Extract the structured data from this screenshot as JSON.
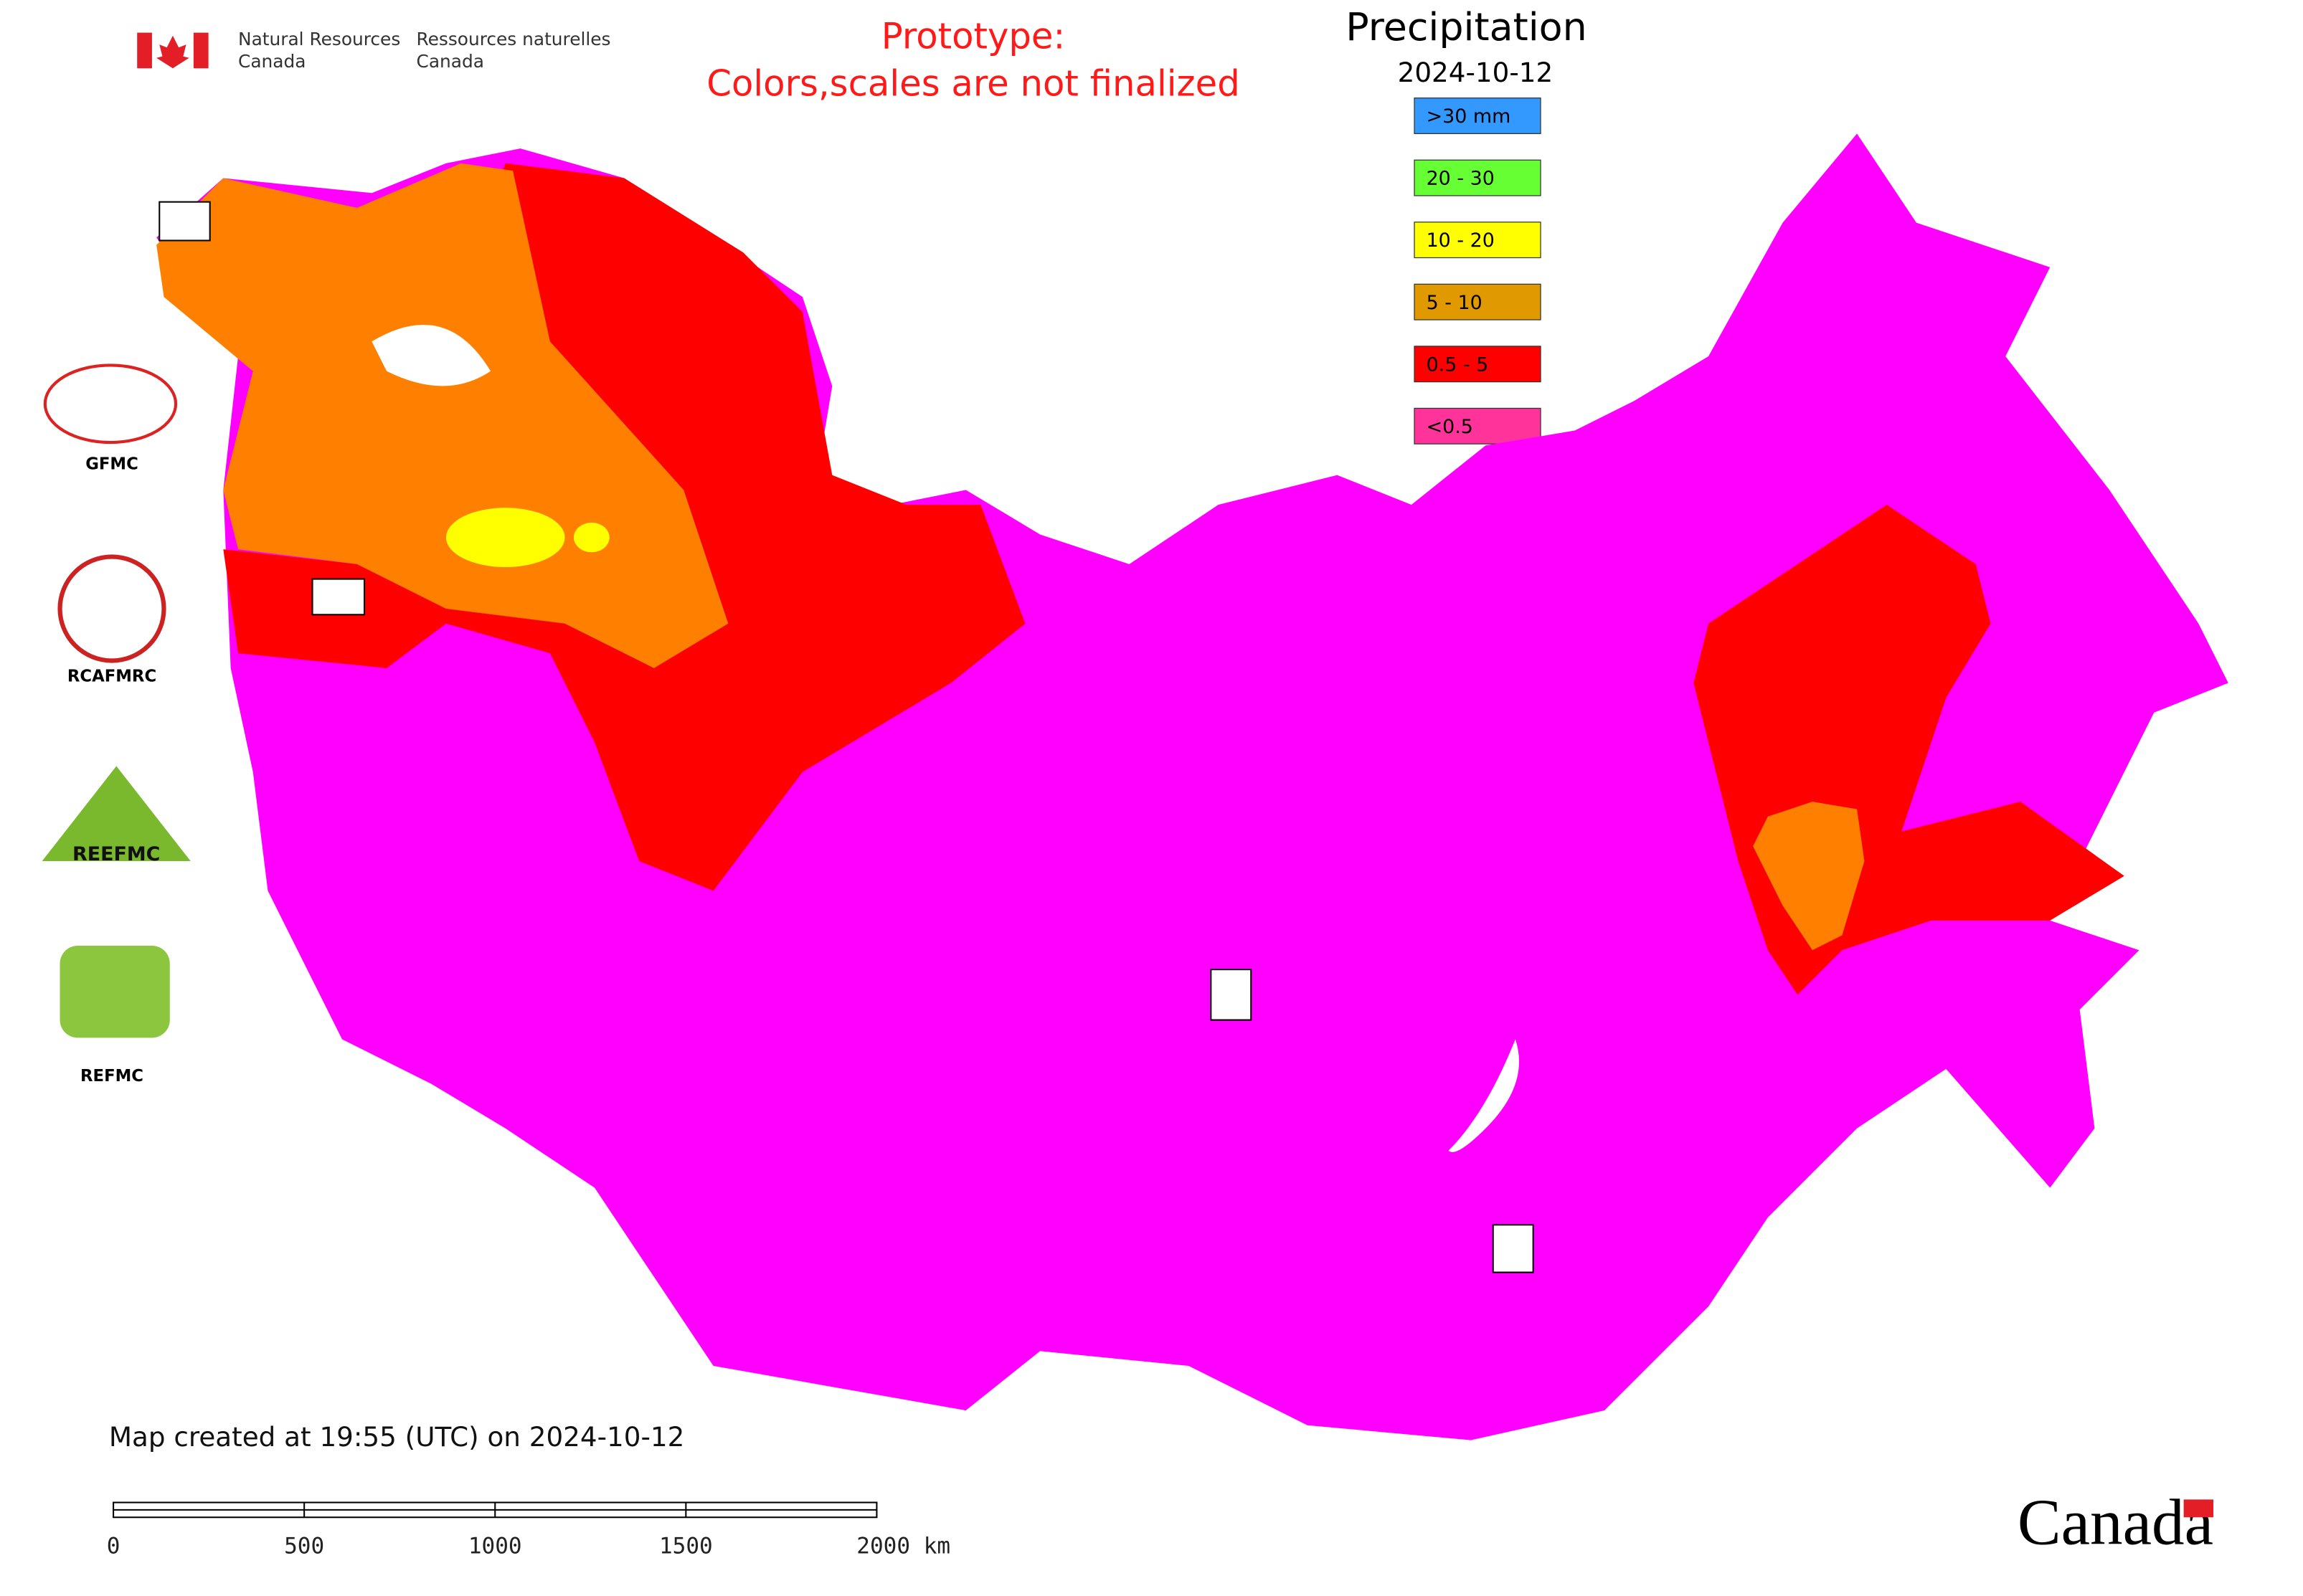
{
  "agency": {
    "en_line1": "Natural Resources",
    "en_line2": "Canada",
    "fr_line1": "Ressources naturelles",
    "fr_line2": "Canada"
  },
  "notice": {
    "line1": "Prototype:",
    "line2": "Colors,scales are not finalized"
  },
  "legend": {
    "title": "Precipitation",
    "date": "2024-10-12",
    "items": [
      {
        "label": ">30 mm",
        "color": "#3399ff"
      },
      {
        "label": "20 - 30",
        "color": "#66ff33"
      },
      {
        "label": "10 - 20",
        "color": "#ffff00"
      },
      {
        "label": "5 - 10",
        "color": "#e09a00"
      },
      {
        "label": "0.5 - 5",
        "color": "#ff0000"
      },
      {
        "label": "<0.5",
        "color": "#ff3399"
      }
    ]
  },
  "map_colors": {
    "low": "#ff00ff",
    "mid": "#ff0000",
    "high": "#ff8000",
    "top": "#ffff00"
  },
  "logos": [
    "GFMC",
    "RCAFMRC",
    "REEFMC",
    "REFMC"
  ],
  "footer": {
    "created": "Map created at 19:55 (UTC) on 2024-10-12",
    "wordmark": "Canada"
  },
  "scale_bar": [
    "0",
    "500",
    "1000",
    "1500",
    "2000 km"
  ]
}
